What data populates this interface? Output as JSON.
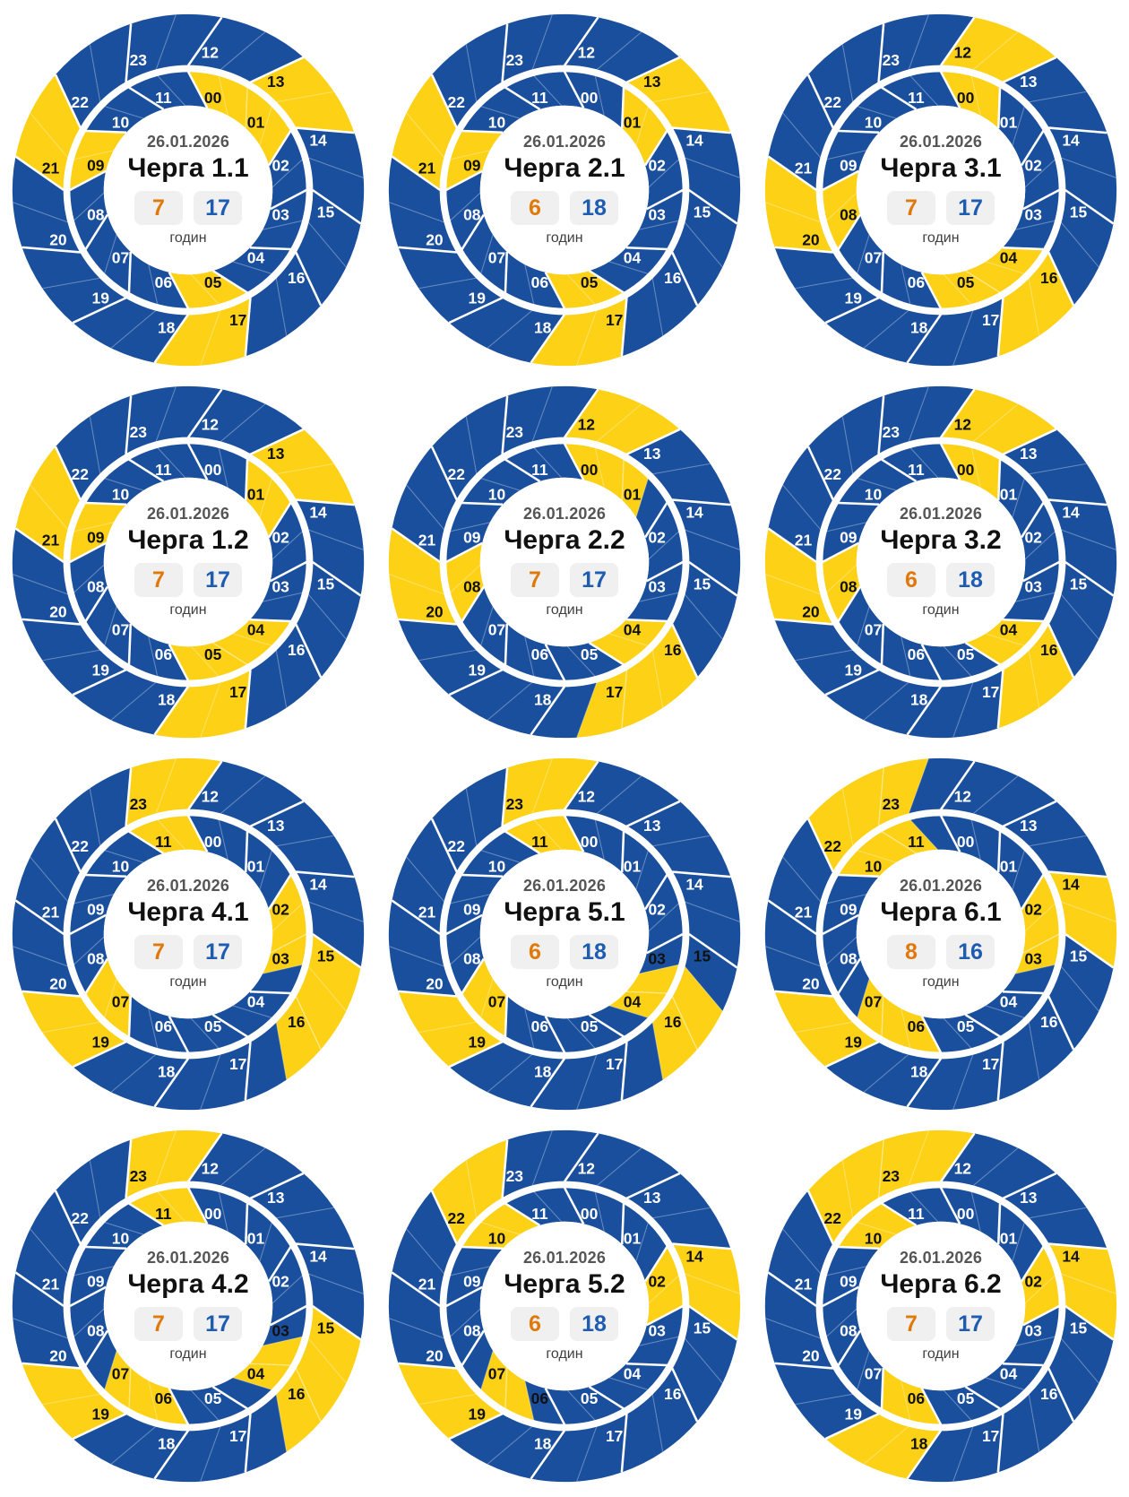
{
  "page": {
    "background": "#ffffff"
  },
  "units_label": "годин",
  "colors": {
    "power_on_blue": "#1a4f9d",
    "outage_yellow": "#fdd116",
    "label_on_blue": "#ffffff",
    "label_on_yellow": "#111111",
    "hour_line": "#ffffff",
    "hour_line_inside_yellow": "rgba(255,255,255,0.45)",
    "halfhour_line": "rgba(255,255,255,0.25)",
    "ring_divider": "#ffffff",
    "center_bg": "#ffffff",
    "date_text": "#555555",
    "title_text": "#111111",
    "chip_bg": "#f0f0f0",
    "off_number_orange": "#e0790a",
    "on_number_blue": "#1d5cb0",
    "unit_text": "#3f3f3f"
  },
  "chart_data": {
    "type": "pie",
    "variant": "24h dual-ring power-outage schedule wheels (inner ring hours 00-11, outer ring hours 12-23)",
    "legend": {
      "yellow": "hours without power (off_hours)",
      "blue": "hours with power (on_hours)"
    },
    "date": "26.01.2026",
    "hour_labels_inner": [
      "00",
      "01",
      "02",
      "03",
      "04",
      "05",
      "06",
      "07",
      "08",
      "09",
      "10",
      "11"
    ],
    "hour_labels_outer": [
      "12",
      "13",
      "14",
      "15",
      "16",
      "17",
      "18",
      "19",
      "20",
      "21",
      "22",
      "23"
    ],
    "charts": [
      {
        "title": "Черга 1.1",
        "date": "26.01.2026",
        "off_hours": 7,
        "on_hours": 17,
        "outage_intervals": [
          [
            0,
            2
          ],
          [
            5,
            6
          ],
          [
            9,
            10
          ],
          [
            13,
            14
          ],
          [
            17,
            18
          ],
          [
            21,
            22
          ]
        ]
      },
      {
        "title": "Черга 2.1",
        "date": "26.01.2026",
        "off_hours": 6,
        "on_hours": 18,
        "outage_intervals": [
          [
            1,
            2
          ],
          [
            5,
            6
          ],
          [
            9,
            10
          ],
          [
            13,
            14
          ],
          [
            17,
            18
          ],
          [
            21,
            22
          ]
        ]
      },
      {
        "title": "Черга 3.1",
        "date": "26.01.2026",
        "off_hours": 7,
        "on_hours": 17,
        "outage_intervals": [
          [
            0,
            1
          ],
          [
            4,
            6
          ],
          [
            8,
            9
          ],
          [
            12,
            13
          ],
          [
            16,
            17
          ],
          [
            20,
            21
          ]
        ]
      },
      {
        "title": "Черга 1.2",
        "date": "26.01.2026",
        "off_hours": 7,
        "on_hours": 17,
        "outage_intervals": [
          [
            1,
            2
          ],
          [
            4,
            6
          ],
          [
            9,
            10
          ],
          [
            13,
            14
          ],
          [
            17,
            18
          ],
          [
            21,
            22
          ]
        ]
      },
      {
        "title": "Черга 2.2",
        "date": "26.01.2026",
        "off_hours": 7,
        "on_hours": 17,
        "outage_intervals": [
          [
            0,
            1.5
          ],
          [
            4,
            5
          ],
          [
            8,
            9
          ],
          [
            12,
            13
          ],
          [
            16,
            17.5
          ],
          [
            20,
            21
          ]
        ]
      },
      {
        "title": "Черга 3.2",
        "date": "26.01.2026",
        "off_hours": 6,
        "on_hours": 18,
        "outage_intervals": [
          [
            0,
            1
          ],
          [
            4,
            5
          ],
          [
            8,
            9
          ],
          [
            12,
            13
          ],
          [
            16,
            17
          ],
          [
            20,
            21
          ]
        ]
      },
      {
        "title": "Черга 4.1",
        "date": "26.01.2026",
        "off_hours": 7,
        "on_hours": 17,
        "outage_intervals": [
          [
            2,
            3.5
          ],
          [
            7,
            8
          ],
          [
            11,
            12
          ],
          [
            15,
            16.5
          ],
          [
            19,
            20
          ],
          [
            23,
            24
          ]
        ]
      },
      {
        "title": "Черга 5.1",
        "date": "26.01.2026",
        "off_hours": 6,
        "on_hours": 18,
        "outage_intervals": [
          [
            3.5,
            4.5
          ],
          [
            7,
            8
          ],
          [
            11,
            12
          ],
          [
            15.5,
            16.5
          ],
          [
            19,
            20
          ],
          [
            23,
            24
          ]
        ]
      },
      {
        "title": "Черга 6.1",
        "date": "26.01.2026",
        "off_hours": 8,
        "on_hours": 16,
        "outage_intervals": [
          [
            2,
            3.5
          ],
          [
            6,
            7.5
          ],
          [
            10,
            11.5
          ],
          [
            14,
            15
          ],
          [
            19,
            20
          ],
          [
            22,
            23.5
          ]
        ]
      },
      {
        "title": "Черга 4.2",
        "date": "26.01.2026",
        "off_hours": 7,
        "on_hours": 17,
        "outage_intervals": [
          [
            3.5,
            4.5
          ],
          [
            6,
            7.5
          ],
          [
            11,
            12
          ],
          [
            15,
            16.5
          ],
          [
            19,
            20
          ],
          [
            23,
            24
          ]
        ]
      },
      {
        "title": "Черга 5.2",
        "date": "26.01.2026",
        "off_hours": 6,
        "on_hours": 18,
        "outage_intervals": [
          [
            2,
            3
          ],
          [
            6.5,
            7.5
          ],
          [
            10,
            11
          ],
          [
            14,
            15
          ],
          [
            19,
            20
          ],
          [
            22,
            23
          ]
        ]
      },
      {
        "title": "Черга 6.2",
        "date": "26.01.2026",
        "off_hours": 7,
        "on_hours": 17,
        "outage_intervals": [
          [
            2,
            3
          ],
          [
            6,
            7
          ],
          [
            10,
            11
          ],
          [
            14,
            15
          ],
          [
            18,
            19
          ],
          [
            22,
            24
          ]
        ]
      }
    ]
  }
}
